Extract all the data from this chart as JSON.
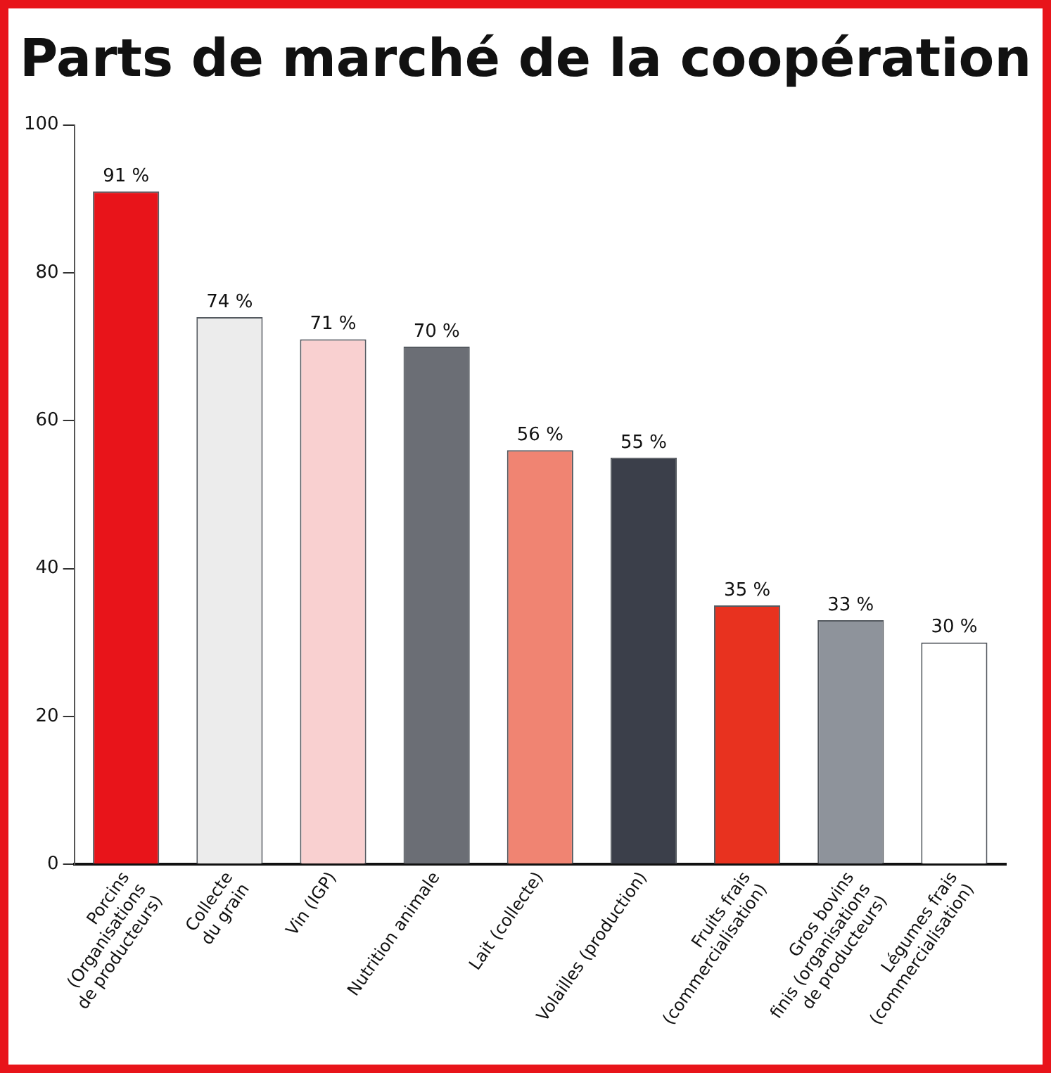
{
  "chart_data": {
    "type": "bar",
    "title": "Parts de marché de la coopération",
    "categories": [
      "Porcins\n(Organisations\nde producteurs)",
      "Collecte\ndu grain",
      "Vin (IGP)",
      "Nutrition animale",
      "Lait (collecte)",
      "Volailles (production)",
      "Fruits frais\n(commercialisation)",
      "Gros bovins\nfinis (organisations\nde producteurs)",
      "Légumes frais\n(commercialisation)"
    ],
    "values": [
      91,
      74,
      71,
      70,
      56,
      55,
      35,
      33,
      30
    ],
    "colors": [
      "#e8141a",
      "#ececec",
      "#f9d0d0",
      "#6b6e75",
      "#f08472",
      "#3b3f4a",
      "#e8321f",
      "#8e939b",
      "#ffffff"
    ],
    "value_labels": [
      "91 %",
      "74 %",
      "71 %",
      "70 %",
      "56 %",
      "55 %",
      "35 %",
      "33 %",
      "30 %"
    ],
    "ylim": [
      0,
      100
    ],
    "yticks": [
      0,
      20,
      40,
      60,
      80,
      100
    ],
    "grid": false,
    "legend": false
  }
}
